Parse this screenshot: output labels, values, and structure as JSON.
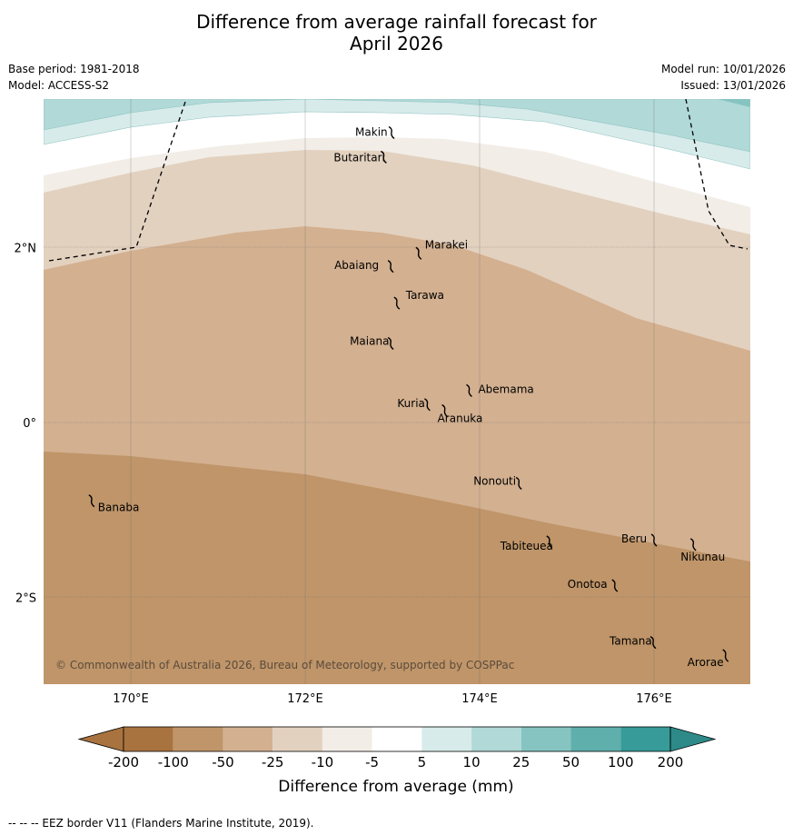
{
  "title_line1": "Difference from average rainfall forecast for",
  "title_line2": "April 2026",
  "base_period": "Base period: 1981-2018",
  "model": "Model: ACCESS-S2",
  "model_run": "Model run: 10/01/2026",
  "issued": "Issued: 13/01/2026",
  "copyright": "© Commonwealth of Australia 2026, Bureau of Meteorology, supported by COSPPac",
  "axes": {
    "lon_ticks": [
      {
        "value": 170,
        "label": "170°E"
      },
      {
        "value": 172,
        "label": "172°E"
      },
      {
        "value": 174,
        "label": "174°E"
      },
      {
        "value": 176,
        "label": "176°E"
      }
    ],
    "lat_ticks": [
      {
        "value": 2,
        "label": "2°N"
      },
      {
        "value": 0,
        "label": "0°"
      },
      {
        "value": -2,
        "label": "2°S"
      }
    ],
    "lon_range": [
      169,
      177.1
    ],
    "lat_range": [
      -3.0,
      3.7
    ]
  },
  "islands": [
    {
      "name": "Makin",
      "lon": 172.99,
      "lat": 3.33
    },
    {
      "name": "Butaritari",
      "lon": 172.9,
      "lat": 3.05
    },
    {
      "name": "Marakei",
      "lon": 173.3,
      "lat": 1.95
    },
    {
      "name": "Abaiang",
      "lon": 172.98,
      "lat": 1.8
    },
    {
      "name": "Tarawa",
      "lon": 173.05,
      "lat": 1.38
    },
    {
      "name": "Maiana",
      "lon": 172.98,
      "lat": 0.92
    },
    {
      "name": "Abemama",
      "lon": 173.88,
      "lat": 0.38
    },
    {
      "name": "Kuria",
      "lon": 173.4,
      "lat": 0.22
    },
    {
      "name": "Aranuka",
      "lon": 173.6,
      "lat": 0.15
    },
    {
      "name": "Nonouti",
      "lon": 174.45,
      "lat": -0.68
    },
    {
      "name": "Banaba",
      "lon": 169.55,
      "lat": -0.88
    },
    {
      "name": "Tabiteuea",
      "lon": 174.8,
      "lat": -1.35
    },
    {
      "name": "Beru",
      "lon": 176.0,
      "lat": -1.33
    },
    {
      "name": "Nikunau",
      "lon": 176.45,
      "lat": -1.38
    },
    {
      "name": "Onotoa",
      "lon": 175.55,
      "lat": -1.85
    },
    {
      "name": "Tamana",
      "lon": 175.99,
      "lat": -2.5
    },
    {
      "name": "Arorae",
      "lon": 176.82,
      "lat": -2.65
    }
  ],
  "colorbar": {
    "title": "Difference from average (mm)",
    "ticks": [
      "-200",
      "-100",
      "-50",
      "-25",
      "-10",
      "-5",
      "5",
      "10",
      "25",
      "50",
      "100",
      "200"
    ],
    "colors": [
      "#a8733f",
      "#bf9569",
      "#d3b090",
      "#e3d1bf",
      "#f2ede7",
      "#ffffff",
      "#d7ebea",
      "#b0d9d7",
      "#86c4c2",
      "#5fafad",
      "#369b99"
    ],
    "under_color": "#a8733f",
    "over_color": "#2d8a88"
  },
  "footer": "--  --  -- EEZ border V11 (Flanders Marine Institute, 2019)."
}
